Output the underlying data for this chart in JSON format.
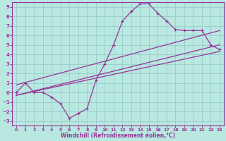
{
  "xlabel": "Windchill (Refroidissement éolien,°C)",
  "bg_color": "#b8e8e0",
  "line_color": "#993399",
  "grid_color": "#99cccc",
  "xlim": [
    -0.5,
    23.5
  ],
  "ylim": [
    -3.5,
    9.5
  ],
  "xticks": [
    0,
    1,
    2,
    3,
    4,
    5,
    6,
    7,
    8,
    9,
    10,
    11,
    12,
    13,
    14,
    15,
    16,
    17,
    18,
    19,
    20,
    21,
    22,
    23
  ],
  "yticks": [
    -3,
    -2,
    -1,
    0,
    1,
    2,
    3,
    4,
    5,
    6,
    7,
    8,
    9
  ],
  "main_curve_x": [
    0,
    1,
    2,
    3,
    4,
    5,
    6,
    7,
    8,
    9,
    10,
    11,
    12,
    13,
    14,
    15,
    16,
    17,
    18,
    19,
    20,
    21,
    22,
    23
  ],
  "main_curve_y": [
    0,
    1,
    0,
    0,
    -0.5,
    -1.2,
    -2.7,
    -2.2,
    -1.7,
    1.3,
    3.0,
    5.0,
    7.5,
    8.5,
    9.3,
    9.3,
    8.3,
    7.5,
    6.6,
    6.5,
    6.5,
    6.5,
    5.0,
    4.5
  ],
  "trend1_start_x": 0,
  "trend1_start_y": -0.3,
  "trend1_end_x": 23,
  "trend1_end_y": 5.0,
  "trend2_start_x": 0,
  "trend2_start_y": -0.3,
  "trend2_end_x": 23,
  "trend2_end_y": 4.3,
  "trend3_start_x": 0,
  "trend3_start_y": 0.8,
  "trend3_end_x": 23,
  "trend3_end_y": 6.5
}
